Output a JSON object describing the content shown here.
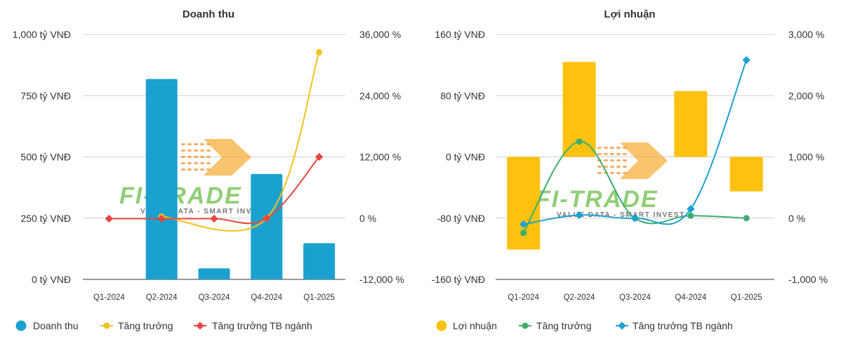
{
  "chart_data": [
    {
      "type": "bar",
      "title": "Doanh thu",
      "categories": [
        "Q1-2024",
        "Q2-2024",
        "Q3-2024",
        "Q4-2024",
        "Q1-2025"
      ],
      "y_left": {
        "range": [
          0,
          1000
        ],
        "tick_values": [
          0,
          250,
          500,
          750,
          1000
        ],
        "tick_labels": [
          "0 tỷ VNĐ",
          "250 tỷ VNĐ",
          "500 tỷ VNĐ",
          "750 tỷ VNĐ",
          "1,000 tỷ VNĐ"
        ]
      },
      "y_right": {
        "range": [
          -12000,
          36000
        ],
        "tick_values": [
          -12000,
          0,
          12000,
          24000,
          36000
        ],
        "tick_labels": [
          "-12,000 %",
          "0 %",
          "12,000 %",
          "24,000 %",
          "36,000 %"
        ]
      },
      "series": [
        {
          "name": "Doanh thu",
          "kind": "bar",
          "axis": "left",
          "color": "#1ba1cf",
          "marker": "circle",
          "values": [
            0,
            818,
            45,
            430,
            148
          ]
        },
        {
          "name": "Tăng trưởng",
          "kind": "line",
          "axis": "right",
          "color": "#f5c21b",
          "marker": "circle",
          "values": [
            null,
            300,
            null,
            0,
            32500
          ]
        },
        {
          "name": "Tăng trưởng TB ngành",
          "kind": "line",
          "axis": "right",
          "color": "#e8453c",
          "marker": "diamond",
          "values": [
            -100,
            -100,
            -100,
            -50,
            12000
          ]
        }
      ],
      "legend_position": "bottom",
      "grid": true
    },
    {
      "type": "bar",
      "title": "Lợi nhuận",
      "categories": [
        "Q1-2024",
        "Q2-2024",
        "Q3-2024",
        "Q4-2024",
        "Q1-2025"
      ],
      "y_left": {
        "range": [
          -160,
          160
        ],
        "tick_values": [
          -160,
          -80,
          0,
          80,
          160
        ],
        "tick_labels": [
          "-160 tỷ VNĐ",
          "-80 tỷ VNĐ",
          "0 tỷ VNĐ",
          "80 tỷ VNĐ",
          "160 tỷ VNĐ"
        ]
      },
      "y_right": {
        "range": [
          -1000,
          3000
        ],
        "tick_values": [
          -1000,
          0,
          1000,
          2000,
          3000
        ],
        "tick_labels": [
          "-1,000 %",
          "0 %",
          "1,000 %",
          "2,000 %",
          "3,000 %"
        ]
      },
      "series": [
        {
          "name": "Lợi nhuận",
          "kind": "bar",
          "axis": "left",
          "color": "#fcc20f",
          "marker": "circle",
          "values": [
            -121,
            124,
            0,
            86,
            -45
          ]
        },
        {
          "name": "Tăng trưởng",
          "kind": "line",
          "axis": "right",
          "color": "#3cad6e",
          "marker": "circle",
          "values": [
            -240,
            1250,
            0,
            40,
            0
          ]
        },
        {
          "name": "Tăng trưởng TB ngành",
          "kind": "line",
          "axis": "right",
          "color": "#1ba1cf",
          "marker": "diamond",
          "values": [
            -100,
            50,
            0,
            150,
            2580
          ]
        }
      ],
      "legend_position": "bottom",
      "grid": true
    }
  ],
  "watermark": {
    "brand": "FI-TRADE",
    "tagline": "VALUE DATA - SMART INVEST"
  }
}
